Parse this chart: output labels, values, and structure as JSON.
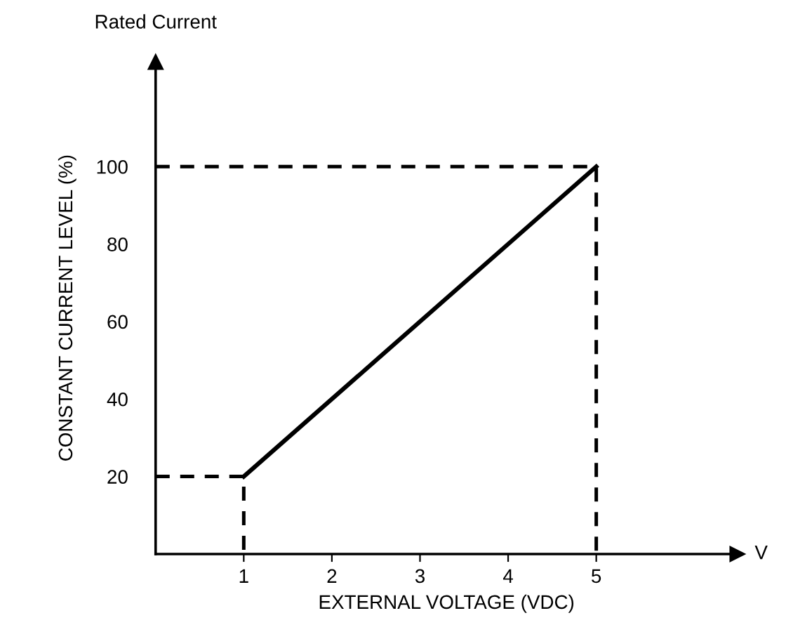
{
  "chart_data": {
    "type": "line",
    "xlabel": "EXTERNAL VOLTAGE (VDC)",
    "ylabel": "CONSTANT CURRENT LEVEL (%)",
    "annotations": [
      "Rated Current",
      "V"
    ],
    "x": [
      1,
      5
    ],
    "series": [
      {
        "color": "#000000",
        "values": [
          20,
          100
        ],
        "line_style": "solid"
      },
      {
        "color": "#000000",
        "x": [
          0,
          1,
          1
        ],
        "values": [
          20,
          20,
          0
        ],
        "line_style": "dashed"
      },
      {
        "color": "#000000",
        "x": [
          0,
          5,
          5
        ],
        "values": [
          100,
          100,
          0
        ],
        "line_style": "dashed"
      }
    ],
    "xlim": [
      0,
      6.6
    ],
    "ylim": [
      0,
      127
    ],
    "xticks": [
      1,
      2,
      3,
      4,
      5
    ],
    "yticks": [
      20,
      40,
      60,
      80,
      100
    ],
    "grid": false,
    "legend": false,
    "marker": "none"
  }
}
